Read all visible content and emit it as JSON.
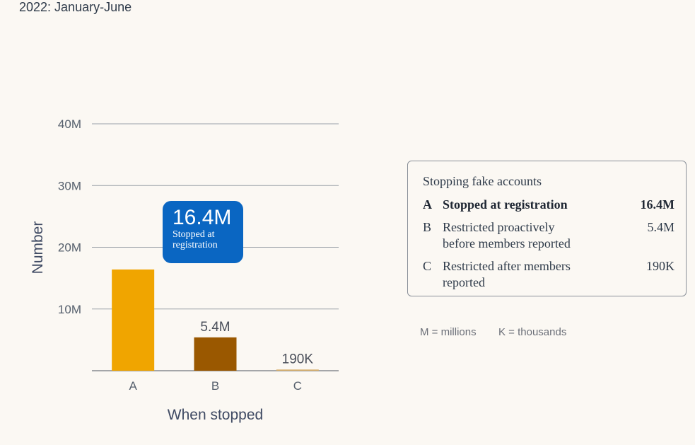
{
  "subtitle": "2022: January-June",
  "chart_data": {
    "type": "bar",
    "categories": [
      "A",
      "B",
      "C"
    ],
    "values": [
      16400000,
      5400000,
      190000
    ],
    "value_labels": [
      "",
      "5.4M",
      "190K"
    ],
    "colors": [
      "#f0a500",
      "#9a5800",
      "#d9b06a"
    ],
    "yticks": [
      10000000,
      20000000,
      30000000,
      40000000
    ],
    "ytick_labels": [
      "10M",
      "20M",
      "30M",
      "40M"
    ],
    "ylim": [
      0,
      40000000
    ],
    "ylabel": "Number",
    "xlabel": "When stopped",
    "grid": true
  },
  "callout": {
    "value": "16.4M",
    "line1": "Stopped at",
    "line2": "registration"
  },
  "legend": {
    "title": "Stopping fake accounts",
    "rows": [
      {
        "letter": "A",
        "line1": "Stopped at registration",
        "line2": "",
        "amount": "16.4M"
      },
      {
        "letter": "B",
        "line1": "Restricted proactively",
        "line2": "before members reported",
        "amount": "5.4M"
      },
      {
        "letter": "C",
        "line1": "Restricted after members",
        "line2": "reported",
        "amount": "190K"
      }
    ]
  },
  "footnotes": {
    "millions": "M = millions",
    "thousands": "K = thousands"
  }
}
